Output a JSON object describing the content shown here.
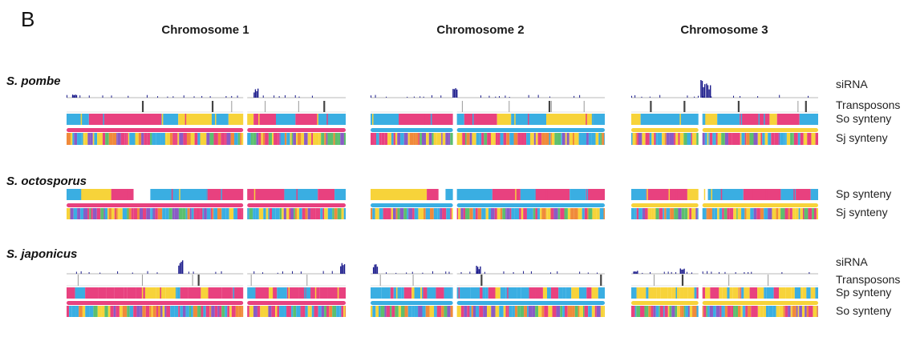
{
  "panel_label": "B",
  "chromosomes": [
    "Chromosome 1",
    "Chromosome 2",
    "Chromosome 3"
  ],
  "colors": {
    "chr1": "#e8417f",
    "chr2": "#3aaee2",
    "chr3": "#f7d33a",
    "sirna": "#1c1c8c",
    "transposon": "#444444",
    "baseline": "#b8b8b8",
    "stripe_extra": [
      "#8a5bc5",
      "#5cbf6e",
      "#f08a3a"
    ]
  },
  "species": [
    {
      "name": "S. pombe",
      "tracks": [
        "siRNA",
        "Transposons",
        "So synteny",
        "Sj synteny"
      ],
      "chromosomes": [
        {
          "backbone": "chr1",
          "segments": 2,
          "blocks": [
            [
              "chr2",
              0.0,
              0.08
            ],
            [
              "chr1",
              0.08,
              0.34
            ],
            [
              "chr2",
              0.34,
              0.4
            ],
            [
              "chr3",
              0.4,
              0.52
            ],
            [
              "chr2",
              0.52,
              0.58
            ],
            [
              "chr3",
              0.58,
              0.67
            ],
            [
              "chr1",
              0.67,
              0.75
            ],
            [
              "chr2",
              0.75,
              0.82
            ],
            [
              "chr1",
              0.82,
              0.9
            ],
            [
              "chr2",
              0.9,
              1.0
            ]
          ]
        },
        {
          "backbone": "chr2",
          "segments": 2,
          "blocks": [
            [
              "chr2",
              0.0,
              0.12
            ],
            [
              "chr1",
              0.12,
              0.36
            ],
            [
              "chr2",
              0.36,
              0.4
            ],
            [
              "chr1",
              0.4,
              0.54
            ],
            [
              "chr3",
              0.54,
              0.6
            ],
            [
              "chr2",
              0.6,
              0.75
            ],
            [
              "chr3",
              0.75,
              0.95
            ],
            [
              "chr2",
              0.95,
              1.0
            ]
          ]
        },
        {
          "backbone": "chr3",
          "segments": 2,
          "blocks": [
            [
              "chr3",
              0.0,
              0.05
            ],
            [
              "chr2",
              0.05,
              0.39
            ],
            [
              "chr3",
              0.39,
              0.46
            ],
            [
              "chr2",
              0.46,
              0.58
            ],
            [
              "chr1",
              0.58,
              0.74
            ],
            [
              "chr3",
              0.74,
              0.78
            ],
            [
              "chr1",
              0.78,
              0.9
            ],
            [
              "chr2",
              0.9,
              1.0
            ]
          ]
        }
      ]
    },
    {
      "name": "S. octosporus",
      "tracks": [
        "Sp synteny",
        "Sj synteny"
      ],
      "chromosomes": [
        {
          "backbone": "chr1",
          "segments": 2,
          "blocks": [
            [
              "chr2",
              0.0,
              0.05
            ],
            [
              "chr3",
              0.05,
              0.16
            ],
            [
              "chr1",
              0.16,
              0.24
            ],
            [
              "chr2",
              0.3,
              0.5
            ],
            [
              "chr1",
              0.5,
              0.78
            ],
            [
              "chr2",
              0.78,
              0.9
            ],
            [
              "chr1",
              0.9,
              0.96
            ],
            [
              "chr2",
              0.96,
              1.0
            ]
          ]
        },
        {
          "backbone": "chr2",
          "segments": 2,
          "blocks": [
            [
              "chr3",
              0.0,
              0.24
            ],
            [
              "chr1",
              0.24,
              0.29
            ],
            [
              "chr2",
              0.32,
              0.52
            ],
            [
              "chr1",
              0.52,
              0.64
            ],
            [
              "chr2",
              0.64,
              0.7
            ],
            [
              "chr1",
              0.7,
              0.85
            ],
            [
              "chr2",
              0.85,
              0.92
            ],
            [
              "chr1",
              0.92,
              1.0
            ]
          ]
        },
        {
          "backbone": "chr3",
          "segments": 2,
          "blocks": [
            [
              "chr2",
              0.0,
              0.08
            ],
            [
              "chr1",
              0.08,
              0.3
            ],
            [
              "chr3",
              0.3,
              0.36
            ],
            [
              "chr2",
              0.41,
              0.6
            ],
            [
              "chr1",
              0.6,
              0.8
            ],
            [
              "chr2",
              0.8,
              0.88
            ],
            [
              "chr1",
              0.88,
              0.96
            ],
            [
              "chr2",
              0.96,
              1.0
            ]
          ]
        }
      ]
    },
    {
      "name": "S. japonicus",
      "tracks": [
        "siRNA",
        "Transposons",
        "Sp synteny",
        "So synteny"
      ],
      "chromosomes": [
        {
          "backbone": "chr1",
          "segments": 2
        },
        {
          "backbone": "chr2",
          "segments": 2
        },
        {
          "backbone": "chr3",
          "segments": 2
        }
      ]
    }
  ]
}
